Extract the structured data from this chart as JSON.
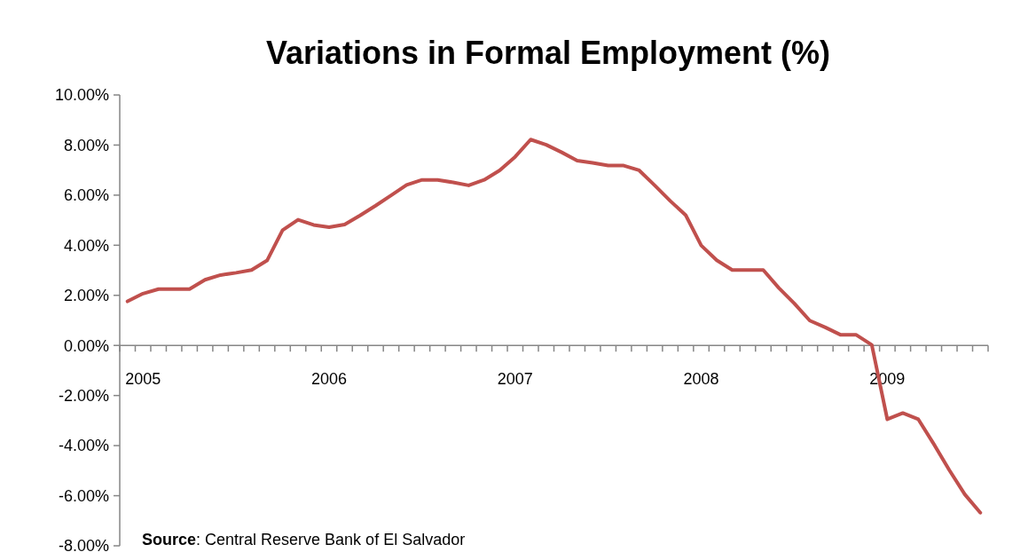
{
  "chart_data": {
    "type": "line",
    "title": "Variations in Formal Employment (%)",
    "categories": [
      null,
      "2005",
      null,
      null,
      null,
      null,
      null,
      null,
      null,
      null,
      null,
      null,
      null,
      "2006",
      null,
      null,
      null,
      null,
      null,
      null,
      null,
      null,
      null,
      null,
      null,
      "2007",
      null,
      null,
      null,
      null,
      null,
      null,
      null,
      null,
      null,
      null,
      null,
      "2008",
      null,
      null,
      null,
      null,
      null,
      null,
      null,
      null,
      null,
      null,
      null,
      "2009",
      null,
      null,
      null,
      null,
      null,
      null
    ],
    "series": [
      {
        "color": "#c0504d",
        "values": [
          1.76,
          2.07,
          2.25,
          2.25,
          2.25,
          2.62,
          2.81,
          2.9,
          3.01,
          3.39,
          4.6,
          5.02,
          4.81,
          4.72,
          4.83,
          5.19,
          5.58,
          5.99,
          6.41,
          6.61,
          6.61,
          6.51,
          6.39,
          6.61,
          6.99,
          7.53,
          8.22,
          8.01,
          7.71,
          7.38,
          7.29,
          7.18,
          7.18,
          6.99,
          6.39,
          5.77,
          5.2,
          3.99,
          3.4,
          3.01,
          3.01,
          3.01,
          2.3,
          1.68,
          0.99,
          0.72,
          0.42,
          0.42,
          0.02,
          -2.95,
          -2.7,
          -2.95,
          -3.94,
          -4.98,
          -5.95,
          -6.68
        ]
      }
    ],
    "ylim": [
      -8,
      10
    ],
    "yticks": [
      {
        "value": -8,
        "label": "-8.00%"
      },
      {
        "value": -6,
        "label": "-6.00%"
      },
      {
        "value": -4,
        "label": "-4.00%"
      },
      {
        "value": -2,
        "label": "-2.00%"
      },
      {
        "value": 0,
        "label": "0.00%"
      },
      {
        "value": 2,
        "label": "2.00%"
      },
      {
        "value": 4,
        "label": "4.00%"
      },
      {
        "value": 6,
        "label": "6.00%"
      },
      {
        "value": 8,
        "label": "8.00%"
      },
      {
        "value": 10,
        "label": "10.00%"
      }
    ],
    "grid": false,
    "marker": "none",
    "line_style": "solid",
    "annotations": [
      "Source: Central Reserve Bank of El Salvador"
    ]
  }
}
